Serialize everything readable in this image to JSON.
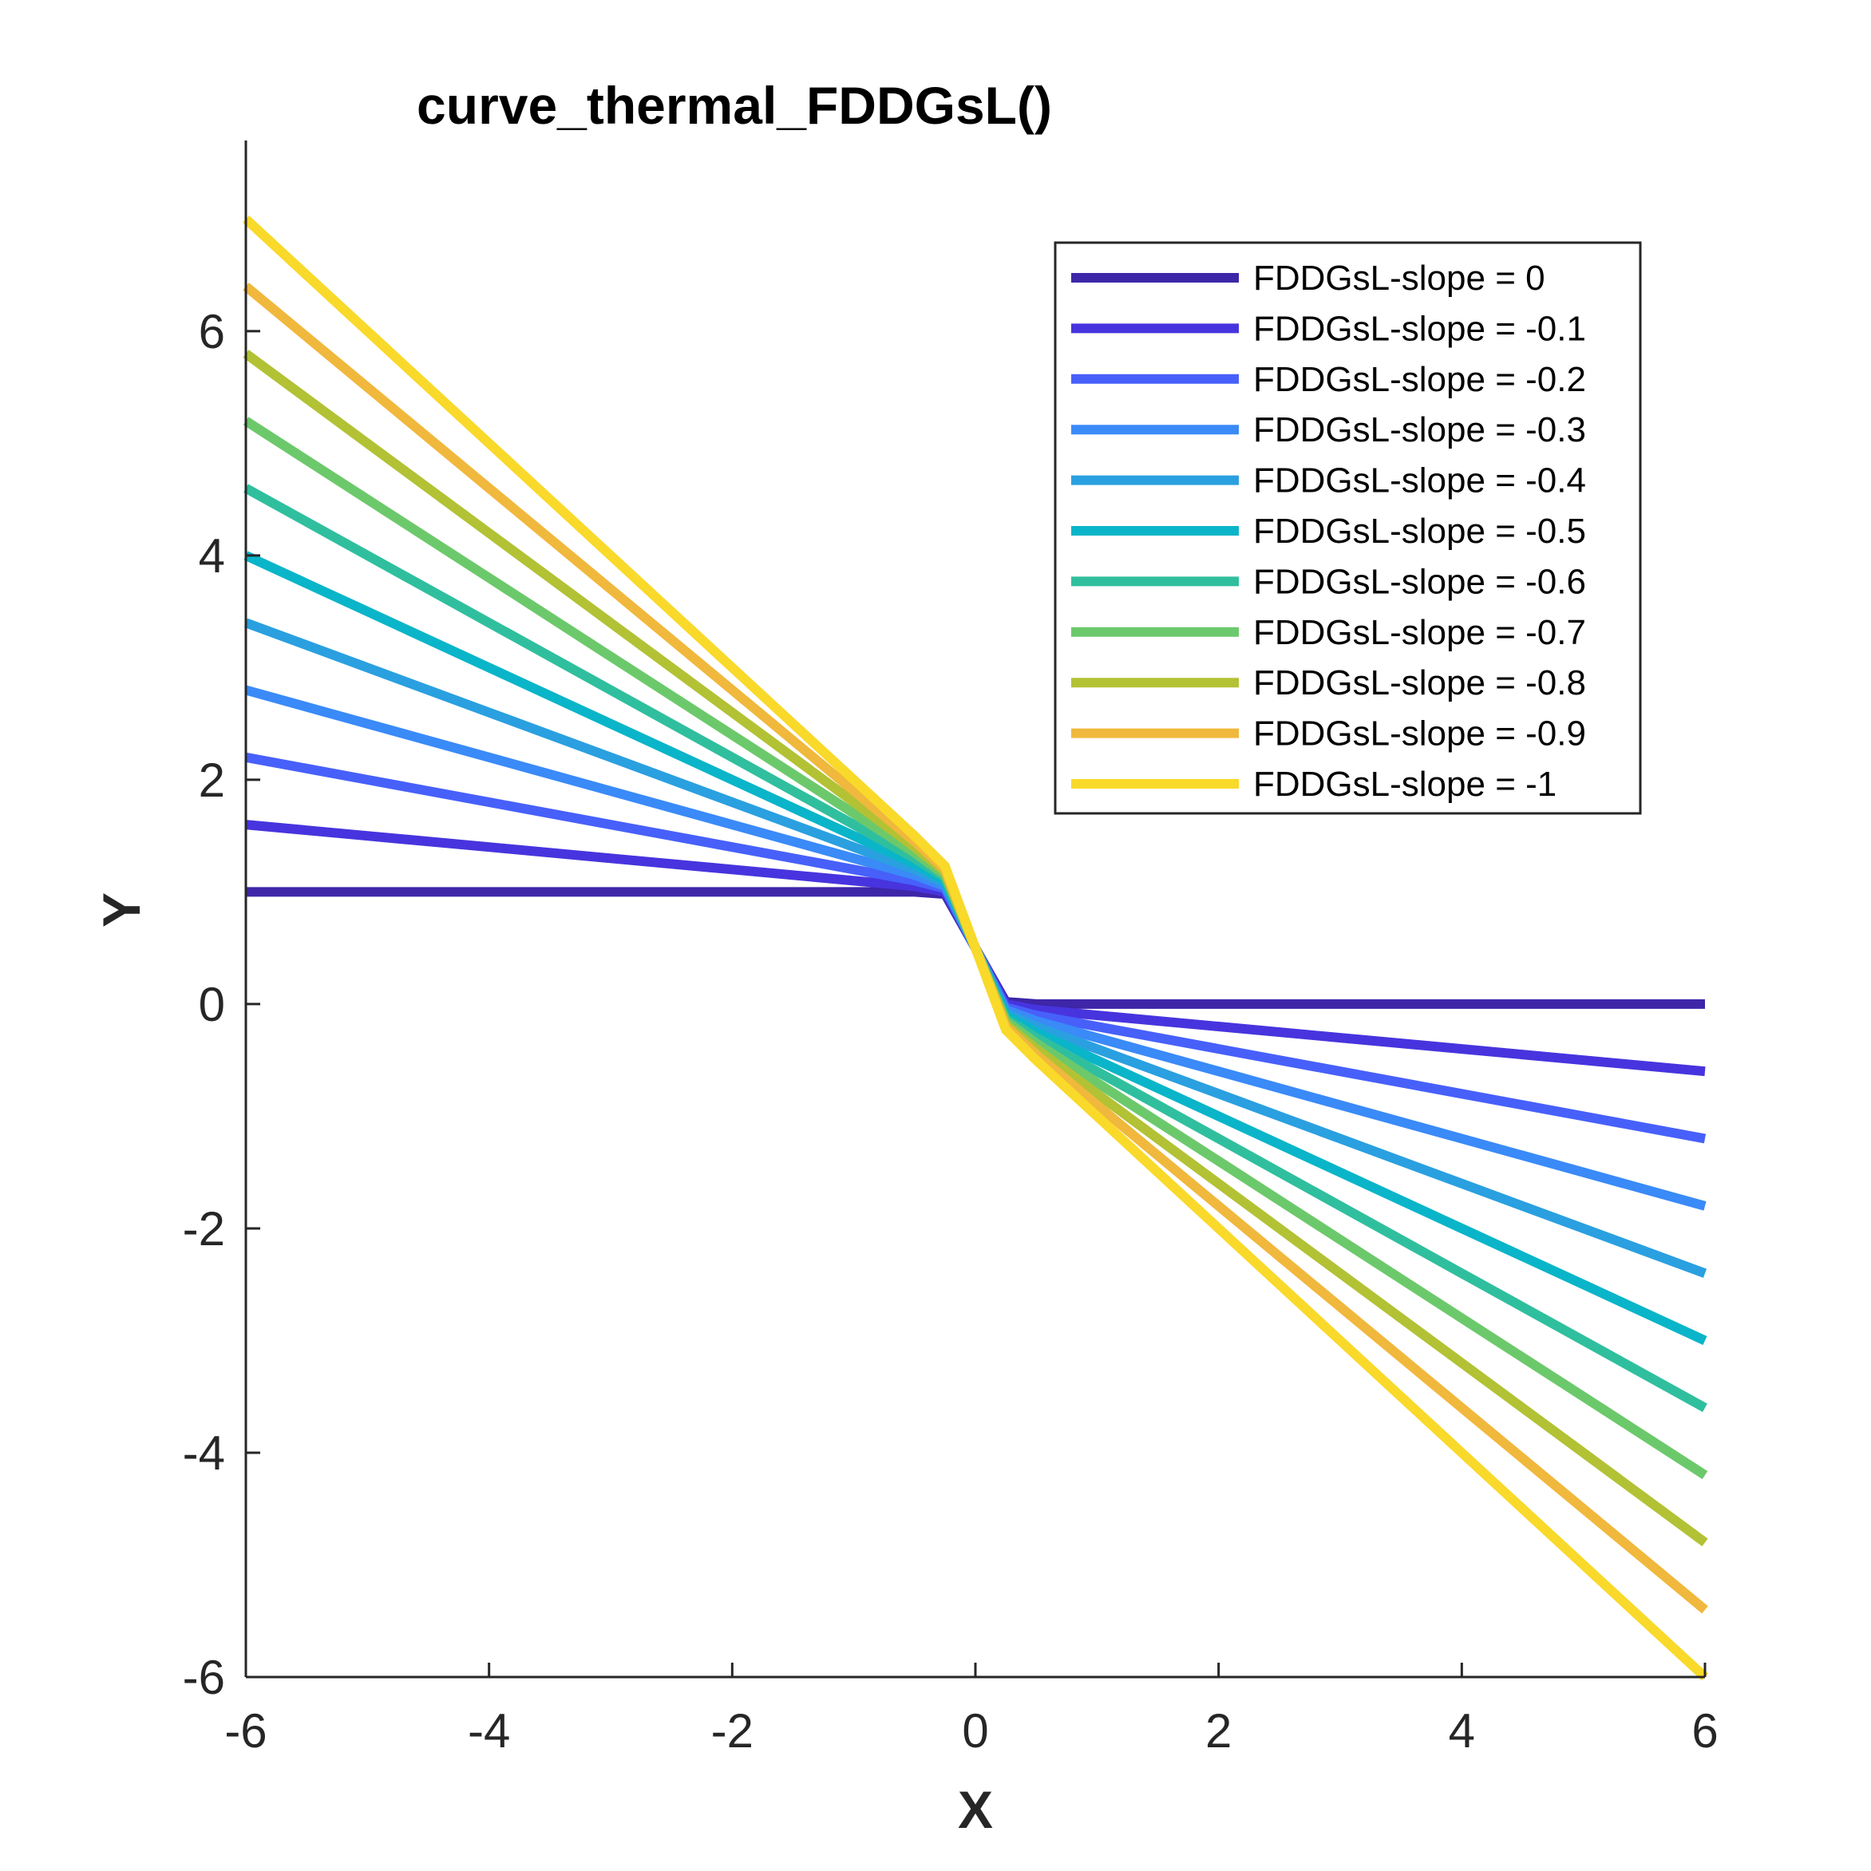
{
  "chart_data": {
    "type": "line",
    "title": "curve_thermal_FDDGsL()",
    "xlabel": "X",
    "ylabel": "Y",
    "xlim": [
      -6,
      6
    ],
    "ylim": [
      -6,
      7.7
    ],
    "xticks": [
      -6,
      -4,
      -2,
      0,
      2,
      4,
      6
    ],
    "yticks": [
      -6,
      -4,
      -2,
      0,
      2,
      4,
      6
    ],
    "xtick_labels": [
      "-6",
      "-4",
      "-2",
      "0",
      "2",
      "4",
      "6"
    ],
    "ytick_labels": [
      "-6",
      "-4",
      "-2",
      "0",
      "2",
      "4",
      "6"
    ],
    "grid": false,
    "legend_position": "top-right",
    "x": [
      -6,
      -5,
      -4,
      -3,
      -2,
      -1,
      -0.5,
      -0.25,
      0,
      0.25,
      0.5,
      1,
      2,
      3,
      4,
      5,
      6
    ],
    "series": [
      {
        "name": "FDDGsL-slope = 0",
        "slope": 0,
        "color": "#3e26a8",
        "values": [
          1,
          1,
          1,
          1,
          1,
          1,
          1,
          0.98,
          0.5,
          0.02,
          0,
          0,
          0,
          0,
          0,
          0,
          0
        ]
      },
      {
        "name": "FDDGsL-slope = -0.1",
        "slope": -0.1,
        "color": "#4734de",
        "values": [
          1.6,
          1.5,
          1.4,
          1.3,
          1.2,
          1.1,
          1.05,
          1.0,
          0.5,
          -0.0,
          -0.05,
          -0.1,
          -0.2,
          -0.3,
          -0.4,
          -0.5,
          -0.6
        ]
      },
      {
        "name": "FDDGsL-slope = -0.2",
        "slope": -0.2,
        "color": "#4760fa",
        "values": [
          2.2,
          2.0,
          1.8,
          1.6,
          1.4,
          1.2,
          1.1,
          1.03,
          0.5,
          -0.03,
          -0.1,
          -0.2,
          -0.4,
          -0.6,
          -0.8,
          -1.0,
          -1.2
        ]
      },
      {
        "name": "FDDGsL-slope = -0.3",
        "slope": -0.3,
        "color": "#3a8af8",
        "values": [
          2.8,
          2.5,
          2.2,
          1.9,
          1.6,
          1.3,
          1.15,
          1.05,
          0.5,
          -0.05,
          -0.15,
          -0.3,
          -0.6,
          -0.9,
          -1.2,
          -1.5,
          -1.8
        ]
      },
      {
        "name": "FDDGsL-slope = -0.4",
        "slope": -0.4,
        "color": "#2aa0e0",
        "values": [
          3.4,
          3.0,
          2.6,
          2.2,
          1.8,
          1.4,
          1.2,
          1.08,
          0.5,
          -0.08,
          -0.2,
          -0.4,
          -0.8,
          -1.2,
          -1.6,
          -2.0,
          -2.4
        ]
      },
      {
        "name": "FDDGsL-slope = -0.5",
        "slope": -0.5,
        "color": "#0ab5c9",
        "values": [
          4.0,
          3.5,
          3.0,
          2.5,
          2.0,
          1.5,
          1.25,
          1.1,
          0.5,
          -0.1,
          -0.25,
          -0.5,
          -1.0,
          -1.5,
          -2.0,
          -2.5,
          -3.0
        ]
      },
      {
        "name": "FDDGsL-slope = -0.6",
        "slope": -0.6,
        "color": "#30bf9e",
        "values": [
          4.6,
          4.0,
          3.4,
          2.8,
          2.2,
          1.6,
          1.3,
          1.13,
          0.5,
          -0.13,
          -0.3,
          -0.6,
          -1.2,
          -1.8,
          -2.4,
          -3.0,
          -3.6
        ]
      },
      {
        "name": "FDDGsL-slope = -0.7",
        "slope": -0.7,
        "color": "#6cc96b",
        "values": [
          5.2,
          4.5,
          3.8,
          3.1,
          2.4,
          1.7,
          1.35,
          1.15,
          0.5,
          -0.15,
          -0.35,
          -0.7,
          -1.4,
          -2.1,
          -2.8,
          -3.5,
          -4.2
        ]
      },
      {
        "name": "FDDGsL-slope = -0.8",
        "slope": -0.8,
        "color": "#b2c234",
        "values": [
          5.8,
          5.0,
          4.2,
          3.4,
          2.6,
          1.8,
          1.4,
          1.18,
          0.5,
          -0.18,
          -0.4,
          -0.8,
          -1.6,
          -2.4,
          -3.2,
          -4.0,
          -4.8
        ]
      },
      {
        "name": "FDDGsL-slope = -0.9",
        "slope": -0.9,
        "color": "#f0b83c",
        "values": [
          6.4,
          5.5,
          4.6,
          3.7,
          2.8,
          1.9,
          1.45,
          1.2,
          0.5,
          -0.2,
          -0.45,
          -0.9,
          -1.8,
          -2.7,
          -3.6,
          -4.5,
          -5.4
        ]
      },
      {
        "name": "FDDGsL-slope = -1",
        "slope": -1,
        "color": "#f9d92a",
        "values": [
          7.0,
          6.0,
          5.0,
          4.0,
          3.0,
          2.0,
          1.5,
          1.23,
          0.5,
          -0.23,
          -0.5,
          -1.0,
          -2.0,
          -3.0,
          -4.0,
          -5.0,
          -6.0
        ]
      }
    ]
  }
}
